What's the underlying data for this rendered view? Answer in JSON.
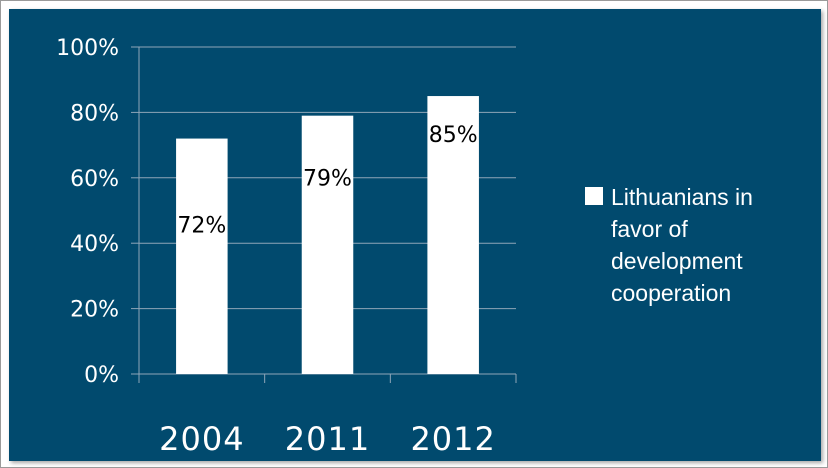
{
  "colors": {
    "background": "#014a6e",
    "bar": "#ffffff",
    "axis": "#8fa6b8",
    "text": "#ffffff",
    "label": "#000000"
  },
  "chart_data": {
    "type": "bar",
    "categories": [
      "2004",
      "2011",
      "2012"
    ],
    "series": [
      {
        "name": "Lithuanians in favor of development cooperation",
        "values": [
          72,
          79,
          85
        ],
        "labels": [
          "72%",
          "79%",
          "85%"
        ]
      }
    ],
    "ylim": [
      0,
      100
    ],
    "yticks": [
      0,
      20,
      40,
      60,
      80,
      100
    ],
    "ytick_labels": [
      "0%",
      "20%",
      "40%",
      "60%",
      "80%",
      "100%"
    ],
    "grid": true,
    "legend": "right"
  }
}
